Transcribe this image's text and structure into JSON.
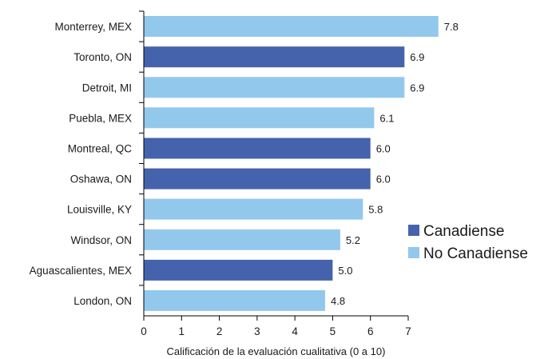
{
  "chart_data": {
    "type": "bar",
    "orientation": "horizontal",
    "categories": [
      "Monterrey, MEX",
      "Toronto, ON",
      "Detroit, MI",
      "Puebla, MEX",
      "Montreal, QC",
      "Oshawa, ON",
      "Louisville, KY",
      "Windsor, ON",
      "Aguascalientes, MEX",
      "London, ON"
    ],
    "values": [
      7.8,
      6.9,
      6.9,
      6.1,
      6.0,
      6.0,
      5.8,
      5.2,
      5.0,
      4.8
    ],
    "value_labels": [
      "7.8",
      "6.9",
      "6.9",
      "6.1",
      "6.0",
      "6.0",
      "5.8",
      "5.2",
      "5.0",
      "4.8"
    ],
    "groups": [
      "No Canadiense",
      "Canadiense",
      "No Canadiense",
      "No Canadiense",
      "Canadiense",
      "Canadiense",
      "No Canadiense",
      "No Canadiense",
      "Canadiense",
      "No Canadiense"
    ],
    "legend": [
      {
        "name": "Canadiense",
        "color": "#4562ac"
      },
      {
        "name": "No Canadiense",
        "color": "#93c8ed"
      }
    ],
    "legend_position": "right",
    "xlabel": "Calificación de la evaluación cualitativa (0 a 10)",
    "ylabel": "",
    "xlim": [
      0,
      7
    ],
    "xticks": [
      "0",
      "1",
      "2",
      "3",
      "4",
      "5",
      "6",
      "7"
    ],
    "grid": false
  }
}
